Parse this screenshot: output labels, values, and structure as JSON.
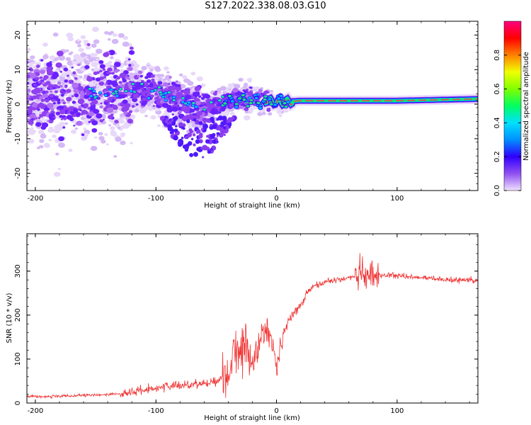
{
  "title": "S127.2022.338.08.03.G10",
  "chart_data": [
    {
      "type": "heatmap",
      "xlabel": "Height of straight line (km)",
      "ylabel": "Frequency (Hz)",
      "xlim": [
        -207,
        167
      ],
      "ylim": [
        -25,
        24
      ],
      "xticks": [
        -200,
        -100,
        0,
        100
      ],
      "yticks": [
        20,
        10,
        0,
        -10,
        -20
      ],
      "colorbar": {
        "label": "Normalized spectral amplitude",
        "range": [
          0,
          1
        ],
        "ticks": [
          "0.0",
          "0.2",
          "0.4",
          "0.6",
          "0.8"
        ],
        "colors": [
          "#f0e0ff",
          "#9050f0",
          "#3000ff",
          "#0090ff",
          "#00e0ff",
          "#00ff60",
          "#80ff00",
          "#f0ff00",
          "#ff8000",
          "#ff0000",
          "#ff0080"
        ]
      },
      "ridge": [
        {
          "x": -200,
          "f": 2
        },
        {
          "x": -150,
          "f": 3
        },
        {
          "x": -120,
          "f": 4
        },
        {
          "x": -100,
          "f": 4
        },
        {
          "x": -80,
          "f": 1
        },
        {
          "x": -60,
          "f": -1
        },
        {
          "x": -40,
          "f": 1
        },
        {
          "x": -20,
          "f": 2
        },
        {
          "x": 0,
          "f": 0.5
        },
        {
          "x": 20,
          "f": 1
        },
        {
          "x": 100,
          "f": 1
        },
        {
          "x": 167,
          "f": 1.5
        }
      ],
      "grid": false
    },
    {
      "type": "line",
      "xlabel": "Height of straight line (km)",
      "ylabel": "SNR (10 * v/v)",
      "xlim": [
        -207,
        167
      ],
      "ylim": [
        0,
        385
      ],
      "xticks": [
        -200,
        -100,
        0,
        100
      ],
      "yticks": [
        0,
        100,
        200,
        300
      ],
      "series": [
        {
          "color": "#f03030",
          "x": [
            -207,
            -180,
            -150,
            -125,
            -110,
            -100,
            -80,
            -60,
            -50,
            -40,
            -35,
            -30,
            -25,
            -20,
            -15,
            -10,
            -5,
            0,
            5,
            10,
            20,
            25,
            30,
            40,
            50,
            60,
            70,
            75,
            80,
            90,
            100,
            120,
            140,
            167
          ],
          "y": [
            15,
            15,
            18,
            22,
            30,
            35,
            40,
            45,
            50,
            65,
            120,
            130,
            120,
            90,
            130,
            170,
            160,
            75,
            150,
            190,
            220,
            250,
            265,
            275,
            280,
            285,
            290,
            295,
            290,
            290,
            290,
            285,
            280,
            280
          ]
        }
      ],
      "grid": false
    }
  ]
}
